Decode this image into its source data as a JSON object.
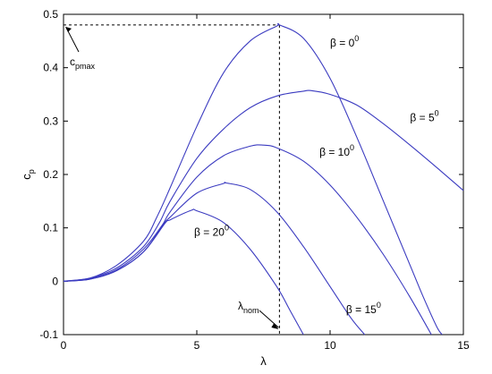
{
  "chart_data": {
    "type": "line",
    "xlabel": "λ",
    "ylabel": {
      "main": "c",
      "sub": "p"
    },
    "xlim": [
      0,
      15
    ],
    "ylim": [
      -0.1,
      0.5
    ],
    "xticks": [
      0,
      5,
      10,
      15
    ],
    "yticks": [
      -0.1,
      0,
      0.1,
      0.2,
      0.3,
      0.4,
      0.5
    ],
    "grid": false,
    "line_color": "#3b3bc0",
    "series": [
      {
        "beta": 0,
        "x": [
          0,
          1,
          2,
          3,
          3.5,
          4,
          5,
          6,
          7,
          8,
          8.1,
          9,
          10,
          11,
          12,
          13,
          13.5,
          14,
          14.2
        ],
        "y": [
          0,
          0.006,
          0.03,
          0.075,
          0.12,
          0.175,
          0.29,
          0.39,
          0.45,
          0.478,
          0.48,
          0.455,
          0.38,
          0.27,
          0.15,
          0.03,
          -0.03,
          -0.085,
          -0.1
        ]
      },
      {
        "beta": 5,
        "x": [
          0,
          1,
          2,
          3,
          3.6,
          4,
          5,
          6,
          7,
          8,
          9,
          9.3,
          10,
          11,
          12,
          13,
          14,
          15
        ],
        "y": [
          0,
          0.006,
          0.025,
          0.065,
          0.11,
          0.15,
          0.23,
          0.285,
          0.325,
          0.347,
          0.356,
          0.357,
          0.35,
          0.33,
          0.295,
          0.255,
          0.213,
          0.17
        ]
      },
      {
        "beta": 10,
        "x": [
          0,
          1,
          2,
          3,
          3.7,
          4,
          5,
          6,
          7,
          7.5,
          8,
          9,
          10,
          11,
          12,
          13,
          13.8
        ],
        "y": [
          0,
          0.005,
          0.022,
          0.06,
          0.105,
          0.13,
          0.195,
          0.235,
          0.253,
          0.255,
          0.25,
          0.225,
          0.18,
          0.12,
          0.05,
          -0.03,
          -0.1
        ]
      },
      {
        "beta": 15,
        "x": [
          0,
          1,
          2,
          3,
          3.75,
          4,
          5,
          6,
          6.1,
          7,
          8,
          9,
          10,
          10.8,
          11.3
        ],
        "y": [
          0,
          0.004,
          0.02,
          0.055,
          0.107,
          0.12,
          0.165,
          0.183,
          0.184,
          0.172,
          0.13,
          0.065,
          -0.01,
          -0.07,
          -0.1
        ]
      },
      {
        "beta": 20,
        "x": [
          0,
          1,
          2,
          3,
          3.8,
          4,
          4.8,
          5,
          6,
          7,
          8,
          8.5,
          9
        ],
        "y": [
          0,
          0.004,
          0.02,
          0.055,
          0.108,
          0.115,
          0.133,
          0.132,
          0.11,
          0.06,
          -0.01,
          -0.055,
          -0.1
        ]
      }
    ],
    "annotations": {
      "cpmax": {
        "main": "c",
        "sub": "pmax",
        "value": 0.48
      },
      "lambda_nom": {
        "main": "λ",
        "sub": "nom",
        "value": 8.1
      },
      "beta_labels": [
        {
          "beta": 0,
          "prefix": "β = 0",
          "sup": "0",
          "x": 10.0,
          "y": 0.44
        },
        {
          "beta": 5,
          "prefix": "β = 5",
          "sup": "0",
          "x": 13.0,
          "y": 0.3
        },
        {
          "beta": 10,
          "prefix": "β = 10",
          "sup": "0",
          "x": 9.6,
          "y": 0.235
        },
        {
          "beta": 15,
          "prefix": "β = 15",
          "sup": "0",
          "x": 10.6,
          "y": -0.06
        },
        {
          "beta": 20,
          "prefix": "β = 20",
          "sup": "0",
          "x": 4.9,
          "y": 0.085
        }
      ]
    }
  }
}
